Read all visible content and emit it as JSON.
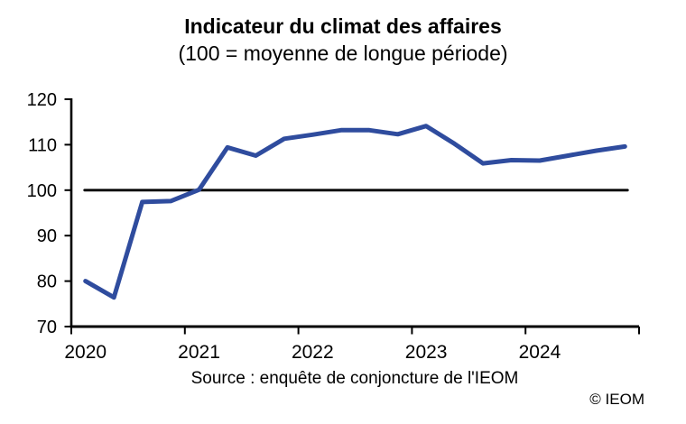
{
  "title": "Indicateur du climat des affaires",
  "subtitle": "(100 = moyenne de longue période)",
  "source_note": "Source : enquête de conjoncture de l'IEOM",
  "copyright": "© IEOM",
  "chart_data": {
    "type": "line",
    "title": "Indicateur du climat des affaires",
    "subtitle": "(100 = moyenne de longue période)",
    "x_unit": "quarter",
    "points_per_year": 4,
    "x_start": "2020-T1",
    "x_end": "2024-T4",
    "x_tick_labels": [
      "2020",
      "2021",
      "2022",
      "2023",
      "2024"
    ],
    "yticks": [
      70,
      80,
      90,
      100,
      110,
      120
    ],
    "ylim": [
      70,
      120
    ],
    "grid": false,
    "legend": "none",
    "axis_color": "#000000",
    "reference_line": {
      "value": 100,
      "color": "#000000"
    },
    "series": [
      {
        "name": "Indicateur du climat des affaires",
        "color": "#2F4C9E",
        "values": [
          80.0,
          76.4,
          97.4,
          97.6,
          100.1,
          109.4,
          107.6,
          111.3,
          112.2,
          113.2,
          113.2,
          112.3,
          114.1,
          110.2,
          105.9,
          106.6,
          106.5,
          107.6,
          108.7,
          109.6
        ]
      }
    ]
  }
}
